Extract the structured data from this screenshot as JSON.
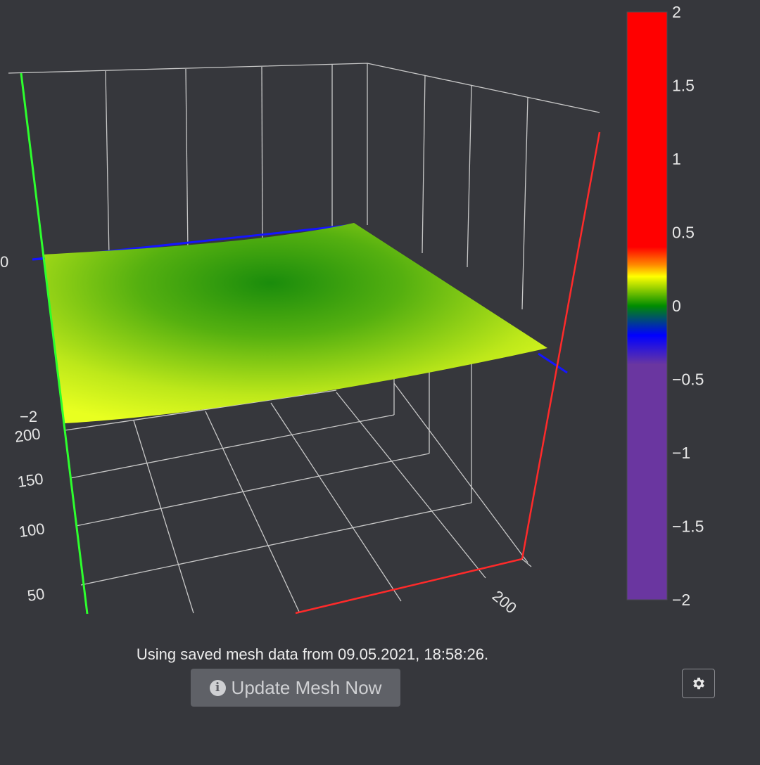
{
  "plot": {
    "z_ticks": [
      "0",
      "−2"
    ],
    "y_ticks": [
      "200",
      "150",
      "100",
      "50"
    ],
    "x_ticks": [
      "200"
    ],
    "colorbar": {
      "ticks": [
        "2",
        "1.5",
        "1",
        "0.5",
        "0",
        "−0.5",
        "−1",
        "−1.5",
        "−2"
      ],
      "range": [
        -2,
        2
      ],
      "colors": [
        "#6a36a0",
        "#0000ff",
        "#008c00",
        "#ffff00",
        "#ff0000"
      ]
    },
    "axis_colors": {
      "x": "#ff2a2a",
      "y": "#2dff2d",
      "z": "#1515ff"
    },
    "surface_colors": [
      "#1a8c0c",
      "#e8ff20"
    ]
  },
  "status": {
    "message": "Using saved mesh data from 09.05.2021, 18:58:26."
  },
  "buttons": {
    "update_label": "Update Mesh Now",
    "update_icon": "info-icon",
    "settings_icon": "gear-icon"
  }
}
